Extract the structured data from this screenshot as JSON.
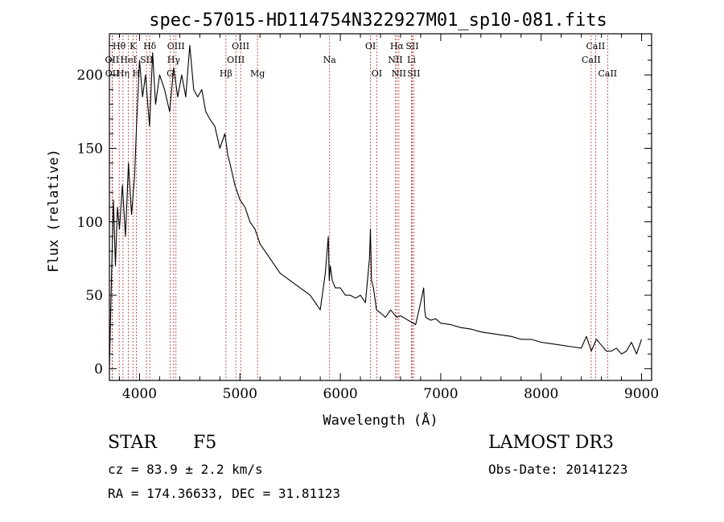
{
  "chart_data": {
    "type": "line",
    "title": "spec-57015-HD114754N322927M01_sp10-081.fits",
    "xlabel": "Wavelength (Å)",
    "ylabel": "Flux (relative)",
    "xlim": [
      3700,
      9100
    ],
    "ylim": [
      -8,
      228
    ],
    "x_ticks": [
      4000,
      5000,
      6000,
      7000,
      8000,
      9000
    ],
    "y_ticks": [
      0,
      50,
      100,
      150,
      200
    ],
    "spectrum": {
      "name": "flux",
      "wavelength": [
        3700,
        3720,
        3740,
        3760,
        3780,
        3800,
        3830,
        3860,
        3890,
        3920,
        3950,
        3970,
        4000,
        4030,
        4060,
        4100,
        4130,
        4160,
        4200,
        4250,
        4300,
        4340,
        4380,
        4420,
        4460,
        4500,
        4540,
        4580,
        4620,
        4660,
        4700,
        4750,
        4800,
        4850,
        4880,
        4900,
        4950,
        5000,
        5050,
        5100,
        5150,
        5200,
        5300,
        5400,
        5500,
        5600,
        5700,
        5750,
        5800,
        5850,
        5880,
        5890,
        5900,
        5920,
        5950,
        6000,
        6050,
        6100,
        6150,
        6200,
        6250,
        6290,
        6300,
        6310,
        6330,
        6360,
        6400,
        6450,
        6500,
        6550,
        6563,
        6600,
        6650,
        6700,
        6750,
        6800,
        6830,
        6840,
        6850,
        6900,
        6950,
        7000,
        7100,
        7200,
        7300,
        7400,
        7500,
        7600,
        7700,
        7800,
        7900,
        8000,
        8100,
        8200,
        8300,
        8400,
        8450,
        8500,
        8550,
        8600,
        8650,
        8700,
        8750,
        8800,
        8850,
        8900,
        8950,
        9000
      ],
      "flux": [
        0,
        60,
        115,
        70,
        110,
        95,
        125,
        90,
        140,
        105,
        130,
        165,
        210,
        185,
        200,
        165,
        215,
        180,
        200,
        190,
        175,
        205,
        185,
        200,
        185,
        220,
        190,
        185,
        190,
        175,
        170,
        165,
        150,
        160,
        145,
        140,
        125,
        115,
        110,
        100,
        95,
        85,
        75,
        65,
        60,
        55,
        50,
        45,
        40,
        65,
        90,
        60,
        70,
        60,
        55,
        55,
        50,
        50,
        48,
        50,
        45,
        75,
        95,
        60,
        55,
        40,
        38,
        35,
        40,
        36,
        35,
        36,
        34,
        32,
        30,
        45,
        55,
        40,
        35,
        33,
        34,
        31,
        30,
        28,
        27,
        25,
        24,
        23,
        22,
        20,
        20,
        18,
        17,
        16,
        15,
        14,
        22,
        12,
        20,
        16,
        12,
        12,
        14,
        10,
        12,
        18,
        10,
        20
      ]
    },
    "spectral_lines": [
      {
        "label": "Hθ",
        "wavelength": 3797,
        "row": 0
      },
      {
        "label": "OII",
        "wavelength": 3727,
        "row": 1
      },
      {
        "label": "OII",
        "wavelength": 3729,
        "row": 2
      },
      {
        "label": "Hη",
        "wavelength": 3835,
        "row": 2
      },
      {
        "label": "HeI",
        "wavelength": 3889,
        "row": 1
      },
      {
        "label": "K",
        "wavelength": 3934,
        "row": 0
      },
      {
        "label": "SII",
        "wavelength": 4070,
        "row": 1
      },
      {
        "label": "H",
        "wavelength": 3968,
        "row": 2
      },
      {
        "label": "Hδ",
        "wavelength": 4102,
        "row": 0
      },
      {
        "label": "OIII",
        "wavelength": 4363,
        "row": 0
      },
      {
        "label": "Hγ",
        "wavelength": 4340,
        "row": 1
      },
      {
        "label": "G",
        "wavelength": 4305,
        "row": 2
      },
      {
        "label": "Hβ",
        "wavelength": 4861,
        "row": 2
      },
      {
        "label": "OIII",
        "wavelength": 5007,
        "row": 0
      },
      {
        "label": "OIII",
        "wavelength": 4959,
        "row": 1
      },
      {
        "label": "Mg",
        "wavelength": 5175,
        "row": 2
      },
      {
        "label": "Na",
        "wavelength": 5893,
        "row": 1
      },
      {
        "label": "OI",
        "wavelength": 6300,
        "row": 0
      },
      {
        "label": "OI",
        "wavelength": 6363,
        "row": 2
      },
      {
        "label": "Hα",
        "wavelength": 6563,
        "row": 0
      },
      {
        "label": "NII",
        "wavelength": 6548,
        "row": 1
      },
      {
        "label": "NII",
        "wavelength": 6583,
        "row": 2
      },
      {
        "label": "SII",
        "wavelength": 6716,
        "row": 0
      },
      {
        "label": "Li",
        "wavelength": 6708,
        "row": 1
      },
      {
        "label": "SII",
        "wavelength": 6731,
        "row": 2
      },
      {
        "label": "CaII",
        "wavelength": 8542,
        "row": 0
      },
      {
        "label": "CaII",
        "wavelength": 8498,
        "row": 1
      },
      {
        "label": "CaII",
        "wavelength": 8662,
        "row": 2
      }
    ]
  },
  "info": {
    "object_class": "STAR",
    "subclass": "F5",
    "survey": "LAMOST DR3",
    "cz": "cz = 83.9 ± 2.2 km/s",
    "obs_date": "Obs-Date: 20141223",
    "coords": "RA = 174.36633, DEC =  31.81123"
  },
  "colors": {
    "line_marker": "#b03030",
    "spectrum": "#000000",
    "background": "#ffffff"
  }
}
